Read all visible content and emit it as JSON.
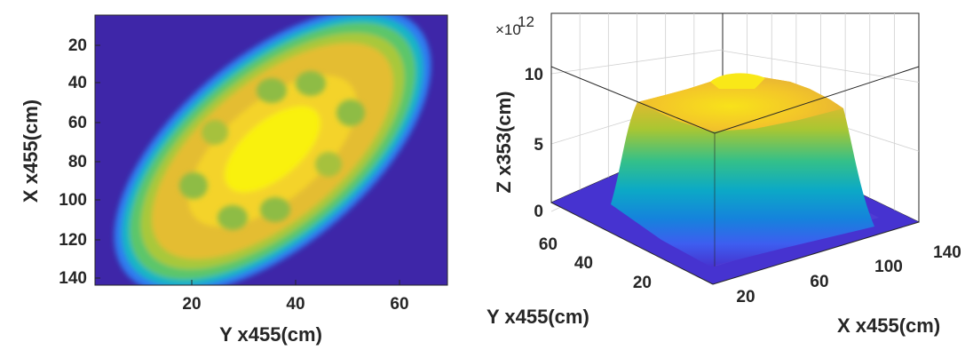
{
  "chart_data": [
    {
      "type": "heatmap",
      "xlabel": "Y x455(cm)",
      "ylabel": "X x455(cm)",
      "xlim": [
        1,
        70
      ],
      "ylim": [
        1,
        143
      ],
      "y_reversed": true,
      "xticks": [
        "20",
        "40",
        "60"
      ],
      "yticks": [
        "20",
        "40",
        "60",
        "80",
        "100",
        "120",
        "140"
      ],
      "colormap": "parula",
      "blob": {
        "center_y": 34,
        "center_x": 72,
        "major_half": 35,
        "minor_half": 24,
        "orientation_deg": -40
      },
      "colors": {
        "background": "#3e26a8",
        "peak": "#f9fb0e"
      }
    },
    {
      "type": "surface",
      "xlabel": "X x455(cm)",
      "ylabel": "Y x455(cm)",
      "zlabel": "Z x353(cm)",
      "zscale_label": "×10",
      "zscale_exponent": "12",
      "xticks": [
        "20",
        "60",
        "100",
        "140"
      ],
      "yticks": [
        "20",
        "40",
        "60"
      ],
      "zticks": [
        "0",
        "5",
        "10"
      ],
      "zlim": [
        0,
        11
      ],
      "plateau_z": 9.5,
      "grid": true,
      "colormap": "parula"
    }
  ]
}
